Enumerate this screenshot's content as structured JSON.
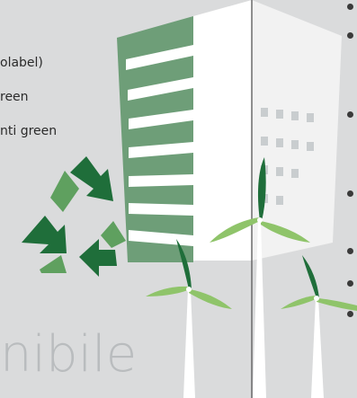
{
  "text": {
    "line1": "olabel)",
    "line2": "reen",
    "line3": "nti green",
    "bigword": "nibile"
  },
  "icons": [
    "recycle-icon",
    "building-illustration",
    "wind-turbine-icon"
  ],
  "colors": {
    "background": "#dadbdc",
    "dark_green": "#1f6e3a",
    "mid_green": "#5fa05f",
    "light_green": "#8fc46a",
    "building_green": "#6e9e78",
    "divider": "#6b6b6b"
  }
}
